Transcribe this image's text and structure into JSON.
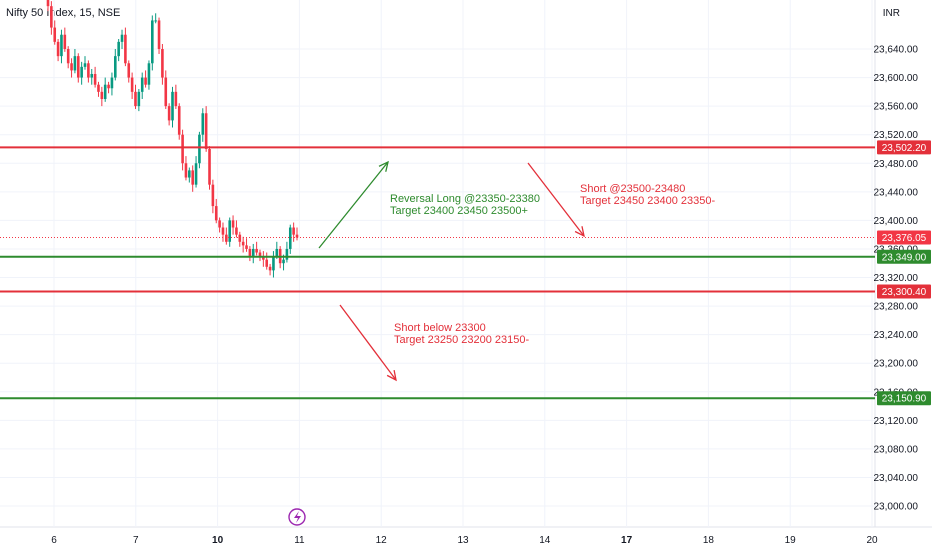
{
  "header": {
    "symbol_title": "Nifty 50 Index, 15, NSE",
    "currency": "INR"
  },
  "colors": {
    "up": "#089981",
    "down": "#f23645",
    "red_line": "#e3303a",
    "green_line": "#2e8b2e",
    "grid": "#f0f3fa",
    "axis_text": "#131722"
  },
  "chart_data": {
    "type": "candlestick",
    "x_ticks": [
      {
        "label": "6",
        "bold": false
      },
      {
        "label": "7",
        "bold": false
      },
      {
        "label": "10",
        "bold": true
      },
      {
        "label": "11",
        "bold": false
      },
      {
        "label": "12",
        "bold": false
      },
      {
        "label": "13",
        "bold": false
      },
      {
        "label": "14",
        "bold": false
      },
      {
        "label": "17",
        "bold": true
      },
      {
        "label": "18",
        "bold": false
      },
      {
        "label": "19",
        "bold": false
      },
      {
        "label": "20",
        "bold": false
      }
    ],
    "y_ticks": [
      "23,000.00",
      "23,040.00",
      "23,080.00",
      "23,120.00",
      "23,160.00",
      "23,200.00",
      "23,240.00",
      "23,280.00",
      "23,320.00",
      "23,360.00",
      "23,400.00",
      "23,440.00",
      "23,480.00",
      "23,520.00",
      "23,560.00",
      "23,600.00",
      "23,640.00"
    ],
    "y_tick_values": [
      23000,
      23040,
      23080,
      23120,
      23160,
      23200,
      23240,
      23280,
      23320,
      23360,
      23400,
      23440,
      23480,
      23520,
      23560,
      23600,
      23640
    ],
    "ylim": [
      22980,
      23690
    ],
    "closes": [
      23700,
      23670,
      23650,
      23630,
      23660,
      23640,
      23620,
      23610,
      23630,
      23600,
      23615,
      23620,
      23600,
      23605,
      23590,
      23580,
      23570,
      23590,
      23585,
      23600,
      23630,
      23650,
      23660,
      23620,
      23600,
      23580,
      23560,
      23580,
      23600,
      23590,
      23620,
      23680,
      23680,
      23640,
      23600,
      23560,
      23540,
      23580,
      23560,
      23520,
      23480,
      23460,
      23470,
      23450,
      23480,
      23520,
      23550,
      23500,
      23450,
      23420,
      23400,
      23390,
      23380,
      23370,
      23400,
      23390,
      23380,
      23370,
      23365,
      23360,
      23350,
      23360,
      23355,
      23350,
      23345,
      23335,
      23330,
      23350,
      23360,
      23340,
      23345,
      23360,
      23390,
      23380,
      23376
    ],
    "levels": [
      {
        "value": 23502.2,
        "label": "23,502.20",
        "color": "#e3303a"
      },
      {
        "value": 23349.0,
        "label": "23,349.00",
        "color": "#2e8b2e"
      },
      {
        "value": 23300.4,
        "label": "23,300.40",
        "color": "#e3303a"
      },
      {
        "value": 23150.9,
        "label": "23,150.90",
        "color": "#2e8b2e"
      }
    ],
    "last_price": {
      "value": 23376.05,
      "label": "23,376.05",
      "color": "#f23645"
    },
    "annotations": [
      {
        "line1": "Reversal Long @23350-23380",
        "line2": "Target 23400 23450 23500+",
        "color": "#2e8b2e"
      },
      {
        "line1": "Short @23500-23480",
        "line2": "Target 23450 23400 23350-",
        "color": "#e3303a"
      },
      {
        "line1": "Short below 23300",
        "line2": "Target 23250 23200 23150-",
        "color": "#e3303a"
      }
    ]
  }
}
